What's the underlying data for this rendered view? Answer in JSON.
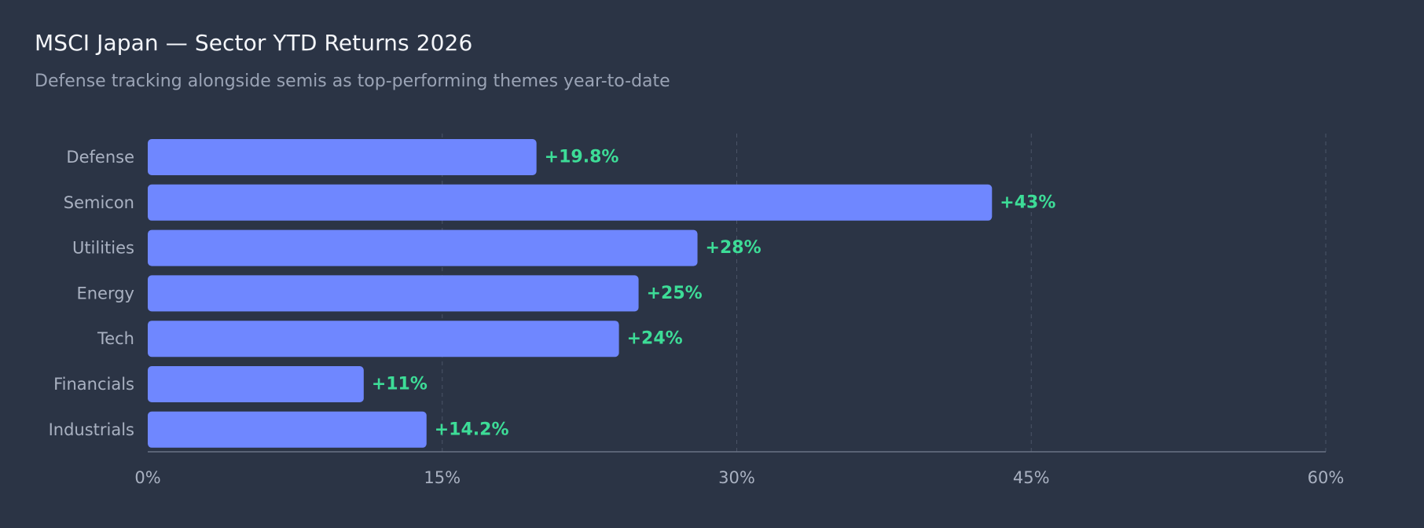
{
  "header": {
    "title": "MSCI Japan — Sector YTD Returns 2026",
    "subtitle": "Defense tracking alongside semis as top-performing themes year-to-date"
  },
  "colors": {
    "background": "#2b3445",
    "bar": "#6f87ff",
    "value_label": "#3ddc97",
    "grid": "#4a5366",
    "axis": "#6b7385"
  },
  "chart_data": {
    "type": "bar",
    "orientation": "horizontal",
    "title": "MSCI Japan — Sector YTD Returns 2026",
    "subtitle": "Defense tracking alongside semis as top-performing themes year-to-date",
    "categories": [
      "Defense",
      "Semicon",
      "Utilities",
      "Energy",
      "Tech",
      "Financials",
      "Industrials"
    ],
    "values": [
      19.8,
      43,
      28,
      25,
      24,
      11,
      14.2
    ],
    "value_labels": [
      "+19.8%",
      "+43%",
      "+28%",
      "+25%",
      "+24%",
      "+11%",
      "+14.2%"
    ],
    "xlim": [
      0,
      60
    ],
    "xticks": [
      0,
      15,
      30,
      45,
      60
    ],
    "xtick_labels": [
      "0%",
      "15%",
      "30%",
      "45%",
      "60%"
    ],
    "xlabel": "",
    "ylabel": "",
    "grid": "vertical dashed",
    "legend": "none"
  }
}
